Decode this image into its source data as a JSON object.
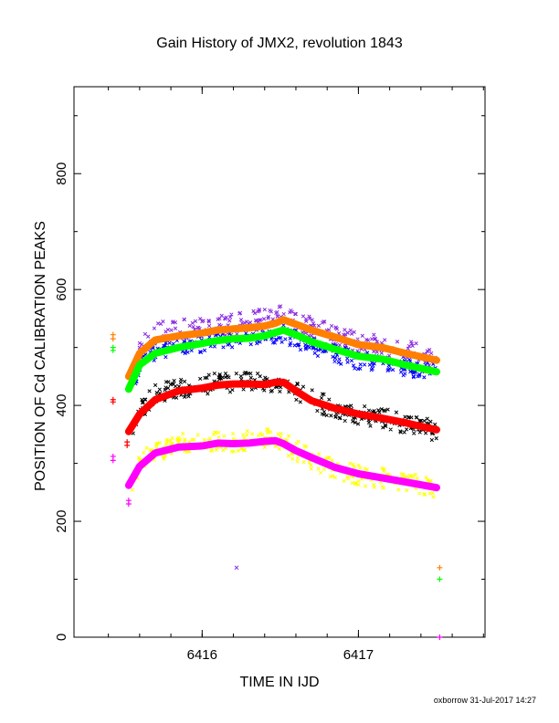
{
  "footer": "oxborrow 31-Jul-2017 14:27",
  "chart_data": {
    "type": "scatter",
    "title": "Gain History of JMX2, revolution 1843",
    "xlabel": "TIME IN IJD",
    "ylabel": "POSITION OF Cd CALIBRATION PEAKS",
    "xlim": [
      6415.18,
      6417.81
    ],
    "ylim": [
      0,
      950
    ],
    "x_ticks": [
      6416,
      6417
    ],
    "y_ticks": [
      0,
      200,
      400,
      600,
      800
    ],
    "grid": false,
    "colors": {
      "orange": "#ff7f00",
      "green": "#00ff00",
      "red": "#ff0000",
      "magenta": "#ff00ff",
      "purple": "#8a2be2",
      "blue": "#0000ff",
      "black": "#000000",
      "yellow": "#ffff00"
    },
    "fitted_series": [
      {
        "color": "orange",
        "points": [
          [
            6415.53,
            450
          ],
          [
            6415.6,
            490
          ],
          [
            6415.7,
            513
          ],
          [
            6415.85,
            520
          ],
          [
            6416.0,
            525
          ],
          [
            6416.1,
            530
          ],
          [
            6416.2,
            532
          ],
          [
            6416.3,
            534
          ],
          [
            6416.4,
            537
          ],
          [
            6416.47,
            542
          ],
          [
            6416.52,
            548
          ],
          [
            6416.6,
            540
          ],
          [
            6416.7,
            530
          ],
          [
            6416.85,
            518
          ],
          [
            6417.0,
            505
          ],
          [
            6417.15,
            500
          ],
          [
            6417.3,
            490
          ],
          [
            6417.5,
            478
          ]
        ]
      },
      {
        "color": "green",
        "points": [
          [
            6415.53,
            428
          ],
          [
            6415.6,
            470
          ],
          [
            6415.7,
            490
          ],
          [
            6415.85,
            500
          ],
          [
            6416.0,
            507
          ],
          [
            6416.1,
            512
          ],
          [
            6416.2,
            515
          ],
          [
            6416.3,
            516
          ],
          [
            6416.4,
            520
          ],
          [
            6416.47,
            526
          ],
          [
            6416.52,
            530
          ],
          [
            6416.6,
            522
          ],
          [
            6416.7,
            510
          ],
          [
            6416.85,
            497
          ],
          [
            6417.0,
            485
          ],
          [
            6417.15,
            480
          ],
          [
            6417.3,
            470
          ],
          [
            6417.5,
            458
          ]
        ]
      },
      {
        "color": "red",
        "points": [
          [
            6415.53,
            355
          ],
          [
            6415.6,
            385
          ],
          [
            6415.7,
            410
          ],
          [
            6415.85,
            425
          ],
          [
            6416.0,
            430
          ],
          [
            6416.1,
            435
          ],
          [
            6416.2,
            437
          ],
          [
            6416.3,
            437
          ],
          [
            6416.4,
            436
          ],
          [
            6416.47,
            440
          ],
          [
            6416.52,
            440
          ],
          [
            6416.6,
            425
          ],
          [
            6416.7,
            408
          ],
          [
            6416.85,
            395
          ],
          [
            6417.0,
            385
          ],
          [
            6417.15,
            378
          ],
          [
            6417.3,
            370
          ],
          [
            6417.5,
            358
          ]
        ]
      },
      {
        "color": "magenta",
        "points": [
          [
            6415.53,
            262
          ],
          [
            6415.6,
            295
          ],
          [
            6415.7,
            318
          ],
          [
            6415.85,
            328
          ],
          [
            6416.0,
            330
          ],
          [
            6416.1,
            335
          ],
          [
            6416.2,
            334
          ],
          [
            6416.3,
            335
          ],
          [
            6416.4,
            338
          ],
          [
            6416.47,
            339
          ],
          [
            6416.52,
            334
          ],
          [
            6416.6,
            322
          ],
          [
            6416.7,
            310
          ],
          [
            6416.85,
            293
          ],
          [
            6417.0,
            282
          ],
          [
            6417.15,
            275
          ],
          [
            6417.3,
            268
          ],
          [
            6417.5,
            258
          ]
        ]
      }
    ],
    "scatter_bands": [
      {
        "color": "purple",
        "points": [
          [
            6415.55,
            455
          ],
          [
            6415.6,
            495
          ],
          [
            6415.7,
            525
          ],
          [
            6415.8,
            530
          ],
          [
            6415.9,
            535
          ],
          [
            6416.0,
            535
          ],
          [
            6416.1,
            538
          ],
          [
            6416.2,
            540
          ],
          [
            6416.3,
            545
          ],
          [
            6416.4,
            552
          ],
          [
            6416.5,
            555
          ],
          [
            6416.6,
            545
          ],
          [
            6416.7,
            535
          ],
          [
            6416.85,
            520
          ],
          [
            6417.0,
            508
          ],
          [
            6417.2,
            500
          ],
          [
            6417.4,
            490
          ],
          [
            6417.5,
            482
          ]
        ],
        "spread": 18
      },
      {
        "color": "blue",
        "points": [
          [
            6415.55,
            435
          ],
          [
            6415.6,
            470
          ],
          [
            6415.7,
            495
          ],
          [
            6415.8,
            500
          ],
          [
            6415.9,
            505
          ],
          [
            6416.0,
            508
          ],
          [
            6416.1,
            510
          ],
          [
            6416.2,
            513
          ],
          [
            6416.3,
            516
          ],
          [
            6416.4,
            518
          ],
          [
            6416.5,
            525
          ],
          [
            6416.6,
            515
          ],
          [
            6416.7,
            502
          ],
          [
            6416.85,
            490
          ],
          [
            6417.0,
            478
          ],
          [
            6417.2,
            472
          ],
          [
            6417.4,
            462
          ],
          [
            6417.5,
            455
          ]
        ],
        "spread": 16
      },
      {
        "color": "black",
        "points": [
          [
            6415.55,
            365
          ],
          [
            6415.6,
            390
          ],
          [
            6415.7,
            420
          ],
          [
            6415.8,
            430
          ],
          [
            6415.9,
            432
          ],
          [
            6416.0,
            435
          ],
          [
            6416.1,
            438
          ],
          [
            6416.2,
            440
          ],
          [
            6416.3,
            442
          ],
          [
            6416.4,
            440
          ],
          [
            6416.5,
            442
          ],
          [
            6416.6,
            425
          ],
          [
            6416.7,
            410
          ],
          [
            6416.85,
            395
          ],
          [
            6417.0,
            385
          ],
          [
            6417.2,
            375
          ],
          [
            6417.4,
            365
          ],
          [
            6417.5,
            355
          ]
        ],
        "spread": 18
      },
      {
        "color": "yellow",
        "points": [
          [
            6415.55,
            265
          ],
          [
            6415.6,
            300
          ],
          [
            6415.7,
            320
          ],
          [
            6415.8,
            330
          ],
          [
            6415.9,
            335
          ],
          [
            6416.0,
            335
          ],
          [
            6416.1,
            337
          ],
          [
            6416.2,
            338
          ],
          [
            6416.3,
            340
          ],
          [
            6416.4,
            342
          ],
          [
            6416.5,
            338
          ],
          [
            6416.6,
            322
          ],
          [
            6416.7,
            308
          ],
          [
            6416.85,
            290
          ],
          [
            6417.0,
            280
          ],
          [
            6417.2,
            272
          ],
          [
            6417.4,
            263
          ],
          [
            6417.5,
            255
          ]
        ],
        "spread": 18
      }
    ],
    "plus_points": [
      {
        "x": 6415.43,
        "y": 522,
        "color": "orange"
      },
      {
        "x": 6415.43,
        "y": 515,
        "color": "orange"
      },
      {
        "x": 6415.43,
        "y": 500,
        "color": "green"
      },
      {
        "x": 6415.43,
        "y": 495,
        "color": "green"
      },
      {
        "x": 6415.43,
        "y": 410,
        "color": "red"
      },
      {
        "x": 6415.43,
        "y": 406,
        "color": "red"
      },
      {
        "x": 6415.43,
        "y": 312,
        "color": "magenta"
      },
      {
        "x": 6415.43,
        "y": 305,
        "color": "magenta"
      },
      {
        "x": 6415.52,
        "y": 337,
        "color": "red"
      },
      {
        "x": 6415.52,
        "y": 331,
        "color": "red"
      },
      {
        "x": 6415.53,
        "y": 236,
        "color": "magenta"
      },
      {
        "x": 6415.53,
        "y": 230,
        "color": "magenta"
      },
      {
        "x": 6417.52,
        "y": 120,
        "color": "orange"
      },
      {
        "x": 6417.52,
        "y": 100,
        "color": "green"
      },
      {
        "x": 6417.52,
        "y": 0,
        "color": "magenta"
      }
    ],
    "outliers": [
      {
        "x": 6416.22,
        "y": 120,
        "color": "purple"
      }
    ]
  }
}
